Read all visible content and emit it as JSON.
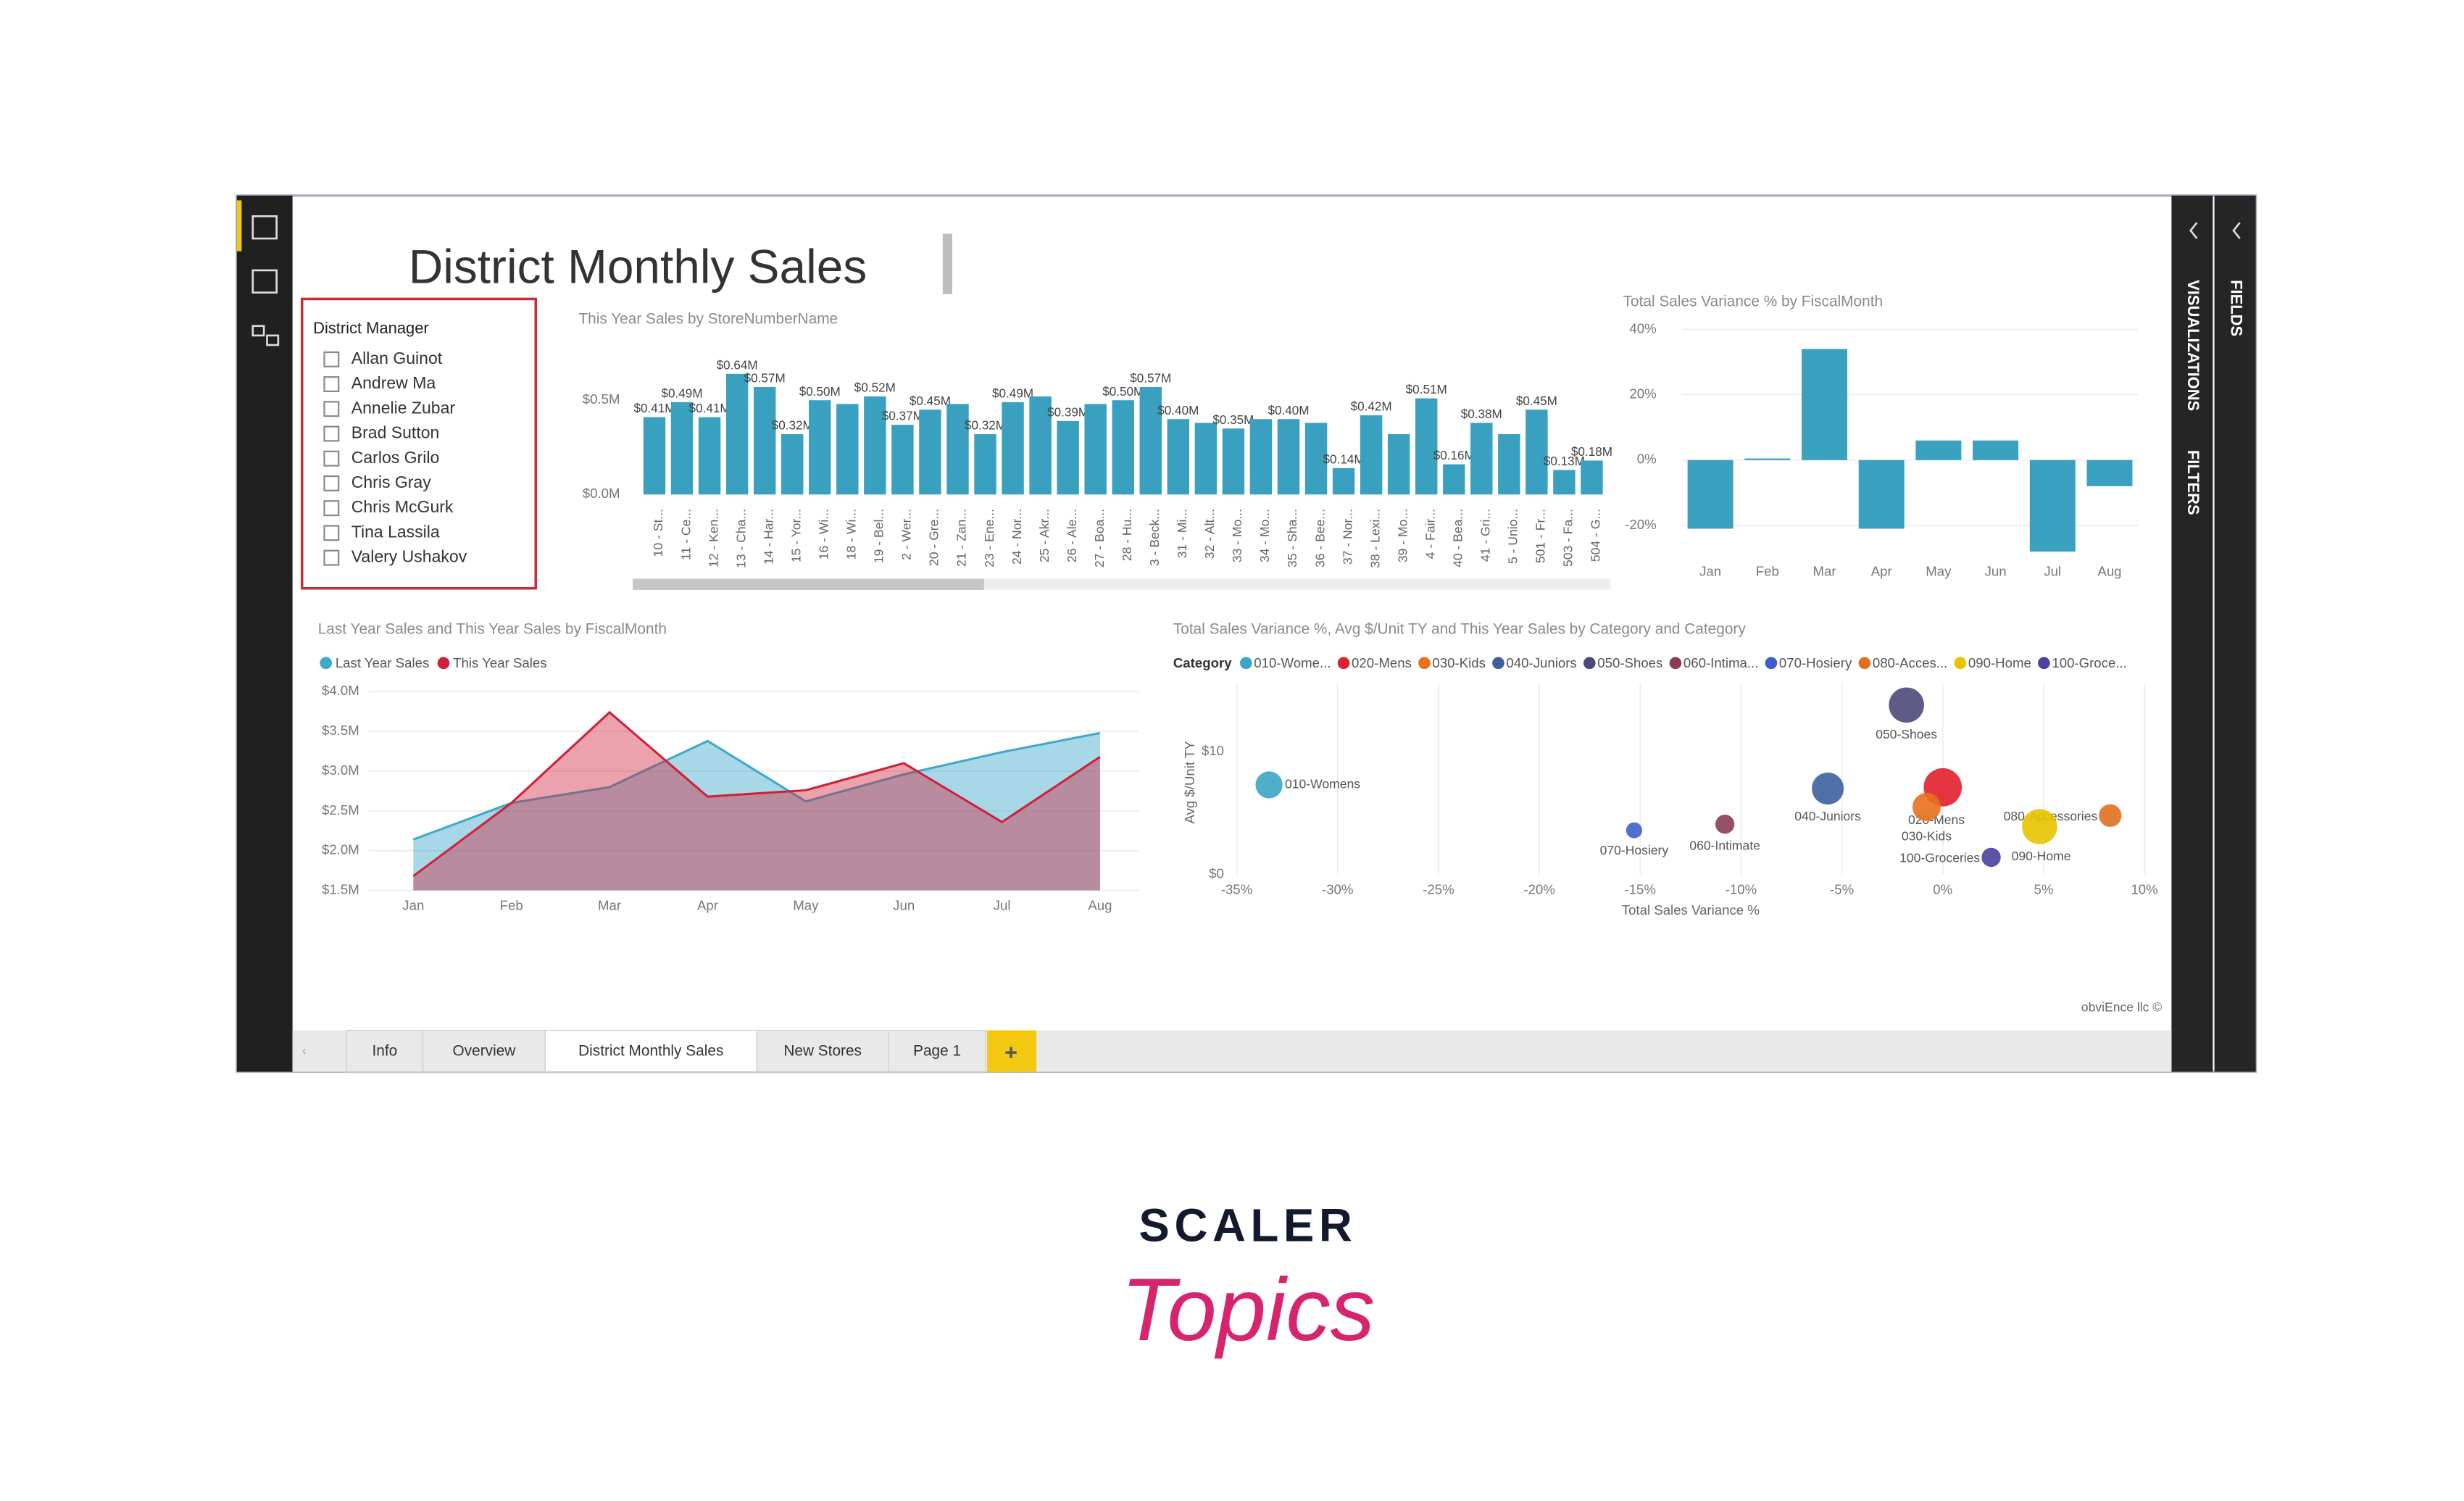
{
  "report_title": "District Monthly Sales",
  "slicer": {
    "title": "District Manager",
    "items": [
      "Allan Guinot",
      "Andrew Ma",
      "Annelie Zubar",
      "Brad Sutton",
      "Carlos Grilo",
      "Chris Gray",
      "Chris McGurk",
      "Tina Lassila",
      "Valery Ushakov"
    ]
  },
  "tabs": [
    "Info",
    "Overview",
    "District Monthly Sales",
    "New Stores",
    "Page 1"
  ],
  "active_tab": 2,
  "add_tab": "+",
  "panes": [
    "VISUALIZATIONS",
    "FILTERS",
    "FIELDS"
  ],
  "footer": "obviEnce llc ©",
  "brand": {
    "line1": "SCALER",
    "line2": "Topics"
  },
  "chart_data": [
    {
      "type": "bar",
      "title": "This Year Sales by StoreNumberName",
      "color": "#3aa0bf",
      "grid": false,
      "categories": [
        "10 - St...",
        "11 - Ce...",
        "12 - Ken...",
        "13 - Cha...",
        "14 - Har...",
        "15 - Yor...",
        "16 - Wi...",
        "18 - Wi...",
        "19 - Bel...",
        "2 - Wer...",
        "20 - Gre...",
        "21 - Zan...",
        "23 - Ene...",
        "24 - Nor...",
        "25 - Akr...",
        "26 - Ale...",
        "27 - Boa...",
        "28 - Hu...",
        "3 - Beck...",
        "31 - Mi...",
        "32 - Alt...",
        "33 - Mo...",
        "34 - Mo...",
        "35 - Sha...",
        "36 - Bee...",
        "37 - Nor...",
        "38 - Lexi...",
        "39 - Mo...",
        "4 - Fair...",
        "40 - Bea...",
        "41 - Gri...",
        "5 - Unio...",
        "501 - Fr...",
        "503 - Fa...",
        "504 - G..."
      ],
      "values": [
        0.41,
        0.49,
        0.41,
        0.64,
        0.57,
        0.32,
        0.5,
        0.48,
        0.52,
        0.37,
        0.45,
        0.48,
        0.32,
        0.49,
        0.52,
        0.39,
        0.48,
        0.5,
        0.57,
        0.4,
        0.38,
        0.35,
        0.4,
        0.4,
        0.38,
        0.14,
        0.42,
        0.32,
        0.51,
        0.16,
        0.38,
        0.32,
        0.45,
        0.13,
        0.18
      ],
      "value_labels": [
        "$0.41M",
        "$0.49M",
        "$0.41M",
        "$0.64M",
        "$0.57M",
        "$0.32M",
        "$0.50M",
        null,
        "$0.52M",
        "$0.37M",
        "$0.45M",
        null,
        "$0.32M",
        "$0.49M",
        null,
        "$0.39M",
        null,
        "$0.50M",
        "$0.57M",
        "$0.40M",
        null,
        "$0.35M",
        null,
        "$0.40M",
        null,
        "$0.14M",
        "$0.42M",
        null,
        "$0.51M",
        "$0.16M",
        "$0.38M",
        null,
        "$0.45M",
        "$0.13M",
        "$0.18M"
      ],
      "ylim": [
        0,
        0.7
      ],
      "yticks": [
        {
          "value": 0,
          "label": "$0.0M"
        },
        {
          "value": 0.5,
          "label": "$0.5M"
        }
      ]
    },
    {
      "type": "bar",
      "title": "Total Sales Variance % by FiscalMonth",
      "color": "#3aa0bf",
      "grid": true,
      "categories": [
        "Jan",
        "Feb",
        "Mar",
        "Apr",
        "May",
        "Jun",
        "Jul",
        "Aug"
      ],
      "values": [
        -21,
        0.5,
        34,
        -21,
        6,
        6,
        -28,
        -8
      ],
      "ylim": [
        -30,
        43
      ],
      "yticks": [
        {
          "value": -20,
          "label": "-20%"
        },
        {
          "value": 0,
          "label": "0%"
        },
        {
          "value": 20,
          "label": "20%"
        },
        {
          "value": 40,
          "label": "40%"
        }
      ]
    },
    {
      "type": "area",
      "title": "Last Year Sales and This Year Sales by FiscalMonth",
      "grid": true,
      "categories": [
        "Jan",
        "Feb",
        "Mar",
        "Apr",
        "May",
        "Jun",
        "Jul",
        "Aug"
      ],
      "series": [
        {
          "name": "Last Year Sales",
          "color": "#3fa9c9",
          "values": [
            2.14,
            2.6,
            2.8,
            3.38,
            2.62,
            2.96,
            3.24,
            3.48
          ]
        },
        {
          "name": "This Year Sales",
          "color": "#d0213b",
          "values": [
            1.68,
            2.6,
            3.74,
            2.68,
            2.76,
            3.1,
            2.36,
            3.18
          ]
        }
      ],
      "ylim": [
        1.5,
        4.0
      ],
      "yticks": [
        {
          "value": 1.5,
          "label": "$1.5M"
        },
        {
          "value": 2.0,
          "label": "$2.0M"
        },
        {
          "value": 2.5,
          "label": "$2.5M"
        },
        {
          "value": 3.0,
          "label": "$3.0M"
        },
        {
          "value": 3.5,
          "label": "$3.5M"
        },
        {
          "value": 4.0,
          "label": "$4.0M"
        }
      ]
    },
    {
      "type": "scatter",
      "title": "Total Sales Variance %, Avg $/Unit TY and This Year Sales by Category and Category",
      "legend_title": "Category",
      "x_label": "Total Sales Variance %",
      "y_label": "Avg $/Unit TY",
      "grid": true,
      "points": [
        {
          "legend": "010-Wome...",
          "label": "010-Womens",
          "color": "#3ca5c4",
          "x": -33.4,
          "y": 7.3,
          "size": 1.0
        },
        {
          "legend": "020-Mens",
          "label": "020-Mens",
          "color": "#e0202e",
          "x": 0,
          "y": 7.1,
          "size": 2.0
        },
        {
          "legend": "030-Kids",
          "label": "030-Kids",
          "color": "#e8701d",
          "x": -0.8,
          "y": 5.5,
          "size": 1.1
        },
        {
          "legend": "040-Juniors",
          "label": "040-Juniors",
          "color": "#3e5f9e",
          "x": -5.7,
          "y": 7.0,
          "size": 1.4
        },
        {
          "legend": "050-Shoes",
          "label": "050-Shoes",
          "color": "#4a4a7a",
          "x": -1.8,
          "y": 13.8,
          "size": 1.7
        },
        {
          "legend": "060-Intima...",
          "label": "060-Intimate",
          "color": "#8a3c55",
          "x": -10.8,
          "y": 4.1,
          "size": 0.5
        },
        {
          "legend": "070-Hosiery",
          "label": "070-Hosiery",
          "color": "#3f5fc8",
          "x": -15.3,
          "y": 3.6,
          "size": 0.35
        },
        {
          "legend": "080-Acces...",
          "label": "080-Accessories",
          "color": "#e07020",
          "x": 8.3,
          "y": 4.8,
          "size": 0.7
        },
        {
          "legend": "090-Home",
          "label": "090-Home",
          "color": "#e8c300",
          "x": 4.8,
          "y": 3.9,
          "size": 1.7
        },
        {
          "legend": "100-Groce...",
          "label": "100-Groceries",
          "color": "#4b3fa0",
          "x": 2.4,
          "y": 1.4,
          "size": 0.5
        }
      ],
      "xlim": [
        -35,
        10
      ],
      "xticks": [
        {
          "value": -35,
          "label": "-35%"
        },
        {
          "value": -30,
          "label": "-30%"
        },
        {
          "value": -25,
          "label": "-25%"
        },
        {
          "value": -20,
          "label": "-20%"
        },
        {
          "value": -15,
          "label": "-15%"
        },
        {
          "value": -10,
          "label": "-10%"
        },
        {
          "value": -5,
          "label": "-5%"
        },
        {
          "value": 0,
          "label": "0%"
        },
        {
          "value": 5,
          "label": "5%"
        },
        {
          "value": 10,
          "label": "10%"
        }
      ],
      "ylim": [
        0,
        14.5
      ],
      "yticks": [
        {
          "value": 0,
          "label": "$0"
        },
        {
          "value": 10,
          "label": "$10"
        }
      ]
    }
  ]
}
